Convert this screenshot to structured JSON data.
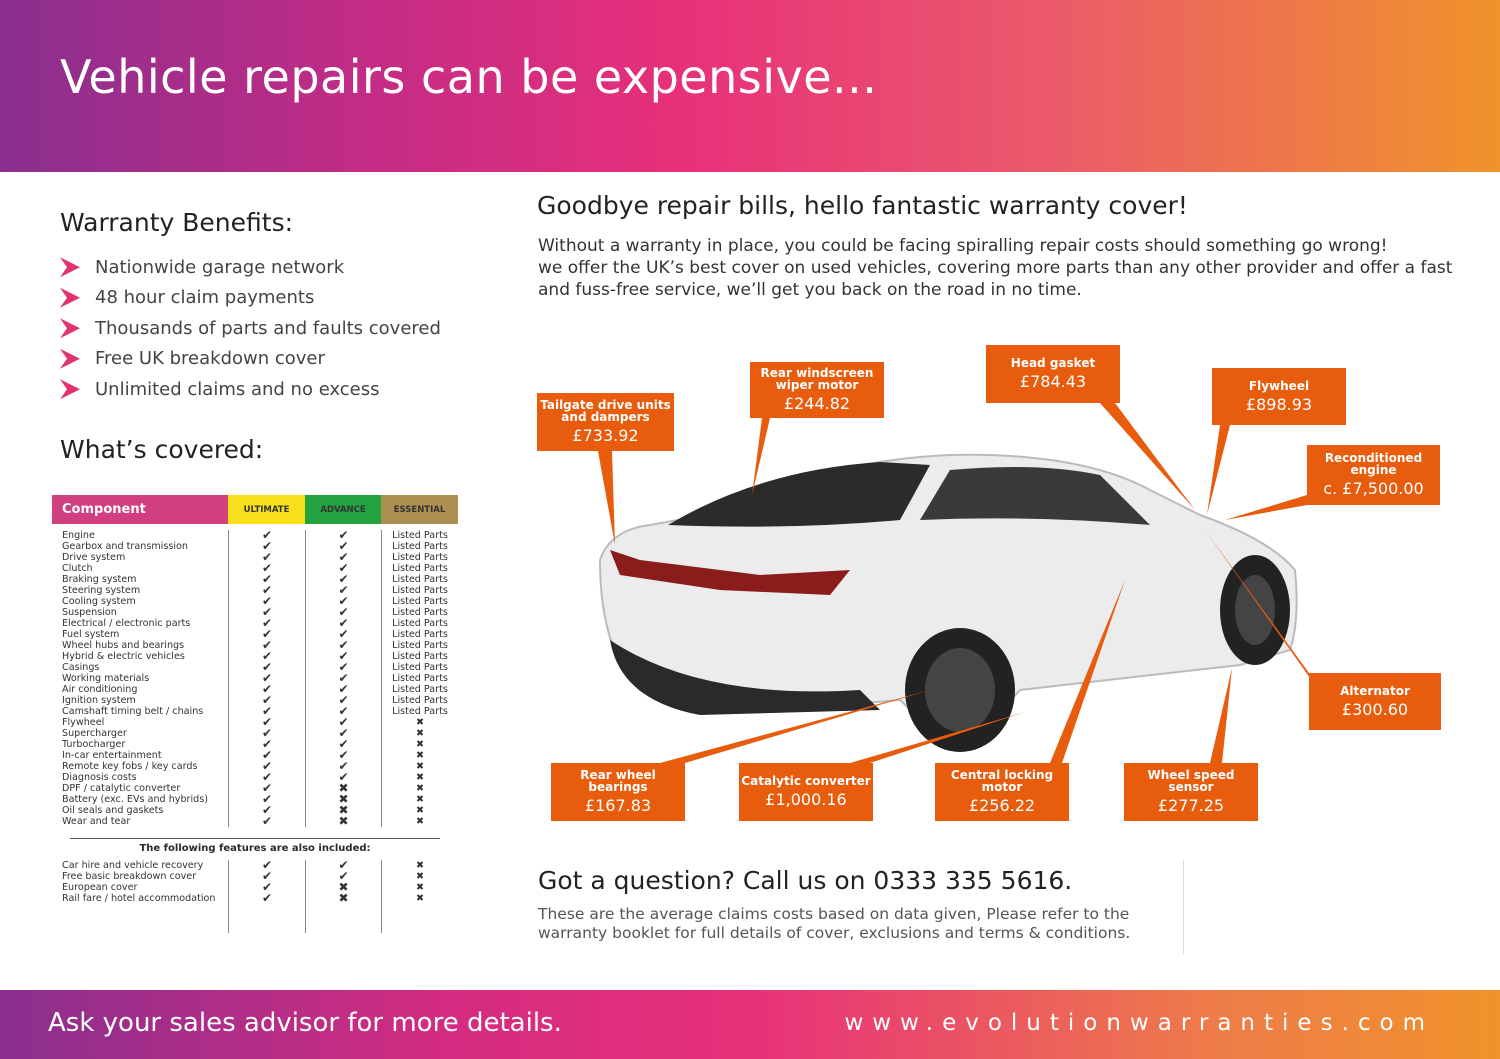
{
  "header": {
    "title": "Vehicle repairs can be expensive..."
  },
  "benefits": {
    "title": "Warranty Benefits:",
    "items": [
      "Nationwide garage network",
      "48 hour claim payments",
      "Thousands of parts and faults covered",
      "Free UK breakdown cover",
      "Unlimited claims and no excess"
    ]
  },
  "covered": {
    "title": "What’s covered:",
    "headers": [
      "Component",
      "ULTIMATE",
      "ADVANCE",
      "ESSENTIAL"
    ],
    "header_colors": [
      "#d23f7e",
      "#f7e01a",
      "#22a340",
      "#ad9050"
    ],
    "rows": [
      [
        "Engine",
        "✔",
        "✔",
        "Listed Parts"
      ],
      [
        "Gearbox and transmission",
        "✔",
        "✔",
        "Listed Parts"
      ],
      [
        "Drive system",
        "✔",
        "✔",
        "Listed Parts"
      ],
      [
        "Clutch",
        "✔",
        "✔",
        "Listed Parts"
      ],
      [
        "Braking system",
        "✔",
        "✔",
        "Listed Parts"
      ],
      [
        "Steering system",
        "✔",
        "✔",
        "Listed Parts"
      ],
      [
        "Cooling system",
        "✔",
        "✔",
        "Listed Parts"
      ],
      [
        "Suspension",
        "✔",
        "✔",
        "Listed Parts"
      ],
      [
        "Electrical / electronic parts",
        "✔",
        "✔",
        "Listed Parts"
      ],
      [
        "Fuel system",
        "✔",
        "✔",
        "Listed Parts"
      ],
      [
        "Wheel hubs and bearings",
        "✔",
        "✔",
        "Listed Parts"
      ],
      [
        "Hybrid & electric vehicles",
        "✔",
        "✔",
        "Listed Parts"
      ],
      [
        "Casings",
        "✔",
        "✔",
        "Listed Parts"
      ],
      [
        "Working materials",
        "✔",
        "✔",
        "Listed Parts"
      ],
      [
        "Air conditioning",
        "✔",
        "✔",
        "Listed Parts"
      ],
      [
        "Ignition system",
        "✔",
        "✔",
        "Listed Parts"
      ],
      [
        "Camshaft timing belt / chains",
        "✔",
        "✔",
        "Listed Parts"
      ],
      [
        "Flywheel",
        "✔",
        "✔",
        "✖"
      ],
      [
        "Supercharger",
        "✔",
        "✔",
        "✖"
      ],
      [
        "Turbocharger",
        "✔",
        "✔",
        "✖"
      ],
      [
        "In-car entertainment",
        "✔",
        "✔",
        "✖"
      ],
      [
        "Remote key fobs / key cards",
        "✔",
        "✔",
        "✖"
      ],
      [
        "Diagnosis costs",
        "✔",
        "✔",
        "✖"
      ],
      [
        "DPF / catalytic converter",
        "✔",
        "✖",
        "✖"
      ],
      [
        "Battery (exc. EVs and hybrids)",
        "✔",
        "✖",
        "✖"
      ],
      [
        "Oil seals and gaskets",
        "✔",
        "✖",
        "✖"
      ],
      [
        "Wear and tear",
        "✔",
        "✖",
        "✖"
      ]
    ],
    "extras_title": "The following features are also included:",
    "extras": [
      [
        "Car hire and vehicle recovery",
        "✔",
        "✔",
        "✖"
      ],
      [
        "Free basic breakdown cover",
        "✔",
        "✔",
        "✖"
      ],
      [
        "European cover",
        "✔",
        "✖",
        "✖"
      ],
      [
        "Rail fare / hotel accommodation",
        "✔",
        "✖",
        "✖"
      ]
    ]
  },
  "main": {
    "title": "Goodbye repair bills, hello fantastic warranty cover!",
    "intro": [
      "Without a warranty in place, you could be facing spiralling repair costs should something go wrong!",
      "we offer the UK’s best cover on used vehicles, covering more parts than any other provider and offer a fast and fuss-free service, we’ll get you back on the road in no time."
    ],
    "callout_color": "#e85c0d",
    "callouts": [
      {
        "label": "Tailgate drive units and dampers",
        "price": "£733.92"
      },
      {
        "label": "Rear windscreen wiper motor",
        "price": "£244.82"
      },
      {
        "label": "Head gasket",
        "price": "£784.43"
      },
      {
        "label": "Flywheel",
        "price": "£898.93"
      },
      {
        "label": "Reconditioned engine",
        "price": "c. £7,500.00"
      },
      {
        "label": "Alternator",
        "price": "£300.60"
      },
      {
        "label": "Rear wheel bearings",
        "price": "£167.83"
      },
      {
        "label": "Catalytic converter",
        "price": "£1,000.16"
      },
      {
        "label": "Central locking motor",
        "price": "£256.22"
      },
      {
        "label": "Wheel speed sensor",
        "price": "£277.25"
      }
    ]
  },
  "question": {
    "title": "Got a question? Call us on 0333 335 5616.",
    "text": "These are the average claims costs based on data given, Please refer to the warranty booklet for full details of cover, exclusions and terms & conditions."
  },
  "footer": {
    "left": "Ask your sales advisor for more details.",
    "right": "www.evolutionwarranties.com"
  }
}
